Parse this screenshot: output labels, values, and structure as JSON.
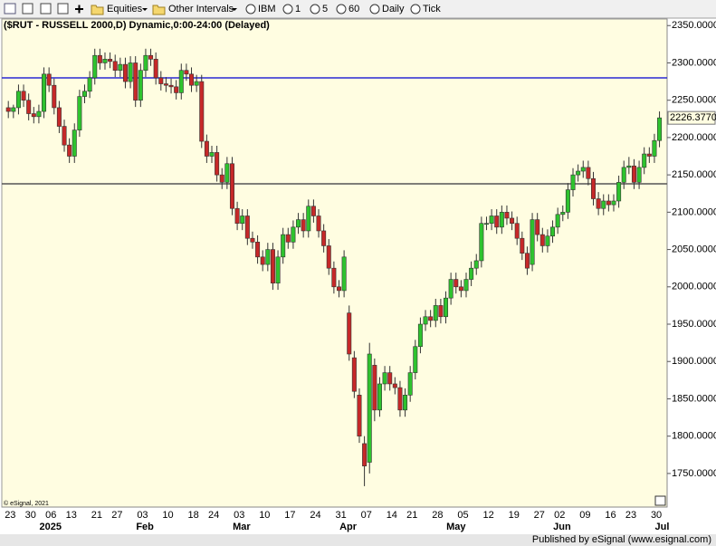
{
  "toolbar": {
    "items": [
      "Equities",
      "Other Intervals",
      "IBM",
      "1",
      "5",
      "60",
      "Daily",
      "Tick"
    ]
  },
  "footer": "Published by eSignal (www.esignal.com)",
  "chart_data": {
    "type": "candlestick",
    "title": "($RUT - RUSSELL 2000,D) Dynamic,0:00-24:00 (Delayed)",
    "copyright": "© eSignal, 2021",
    "background": "#fffde1",
    "up_color": "#2ec32e",
    "down_color": "#c62828",
    "ylim": [
      1705,
      2360
    ],
    "yticks": [
      {
        "value": 2350,
        "label": "2350.0000"
      },
      {
        "value": 2300,
        "label": "2300.0000"
      },
      {
        "value": 2250,
        "label": "2250.0000"
      },
      {
        "value": 2200,
        "label": "2200.0000"
      },
      {
        "value": 2150,
        "label": "2150.0000"
      },
      {
        "value": 2100,
        "label": "2100.0000"
      },
      {
        "value": 2050,
        "label": "2050.0000"
      },
      {
        "value": 2000,
        "label": "2000.0000"
      },
      {
        "value": 1950,
        "label": "1950.0000"
      },
      {
        "value": 1900,
        "label": "1900.0000"
      },
      {
        "value": 1850,
        "label": "1850.0000"
      },
      {
        "value": 1800,
        "label": "1800.0000"
      },
      {
        "value": 1750,
        "label": "1750.0000"
      }
    ],
    "last_price": {
      "value": 2226.377,
      "label": "2226.3770"
    },
    "hlines": [
      {
        "value": 2280,
        "color": "#2a2ad4"
      },
      {
        "value": 2138,
        "color": "#555555"
      }
    ],
    "categories": [
      "23",
      null,
      null,
      null,
      "30",
      null,
      null,
      null,
      "06",
      null,
      null,
      null,
      "13",
      null,
      null,
      null,
      null,
      "21",
      null,
      null,
      null,
      "27",
      null,
      null,
      null,
      null,
      "03",
      null,
      null,
      null,
      null,
      "10",
      null,
      null,
      null,
      null,
      "18",
      null,
      null,
      null,
      "24",
      null,
      null,
      null,
      null,
      "03",
      null,
      null,
      null,
      null,
      "10",
      null,
      null,
      null,
      null,
      "17",
      null,
      null,
      null,
      null,
      "24",
      null,
      null,
      null,
      null,
      "31",
      null,
      null,
      null,
      null,
      "07",
      null,
      null,
      null,
      null,
      "14",
      null,
      null,
      null,
      "21",
      null,
      null,
      null,
      null,
      "28",
      null,
      null,
      null,
      null,
      "05",
      null,
      null,
      null,
      null,
      "12",
      null,
      null,
      null,
      null,
      "19",
      null,
      null,
      null,
      null,
      "27",
      null,
      null,
      null,
      "02",
      null,
      null,
      null,
      null,
      "09",
      null,
      null,
      null,
      null,
      "16",
      null,
      null,
      null,
      "23",
      null,
      null,
      null,
      null,
      "30",
      null
    ],
    "month_labels": [
      null,
      null,
      null,
      null,
      null,
      null,
      null,
      "2025",
      null,
      null,
      null,
      null,
      null,
      null,
      null,
      null,
      null,
      null,
      null,
      null,
      null,
      null,
      null,
      null,
      null,
      null,
      "Feb",
      null,
      null,
      null,
      null,
      null,
      null,
      null,
      null,
      null,
      null,
      null,
      null,
      null,
      null,
      null,
      null,
      null,
      null,
      "Mar",
      null,
      null,
      null,
      null,
      null,
      null,
      null,
      null,
      null,
      null,
      null,
      null,
      null,
      null,
      null,
      null,
      null,
      null,
      null,
      null,
      "Apr",
      null,
      null,
      null,
      null,
      null,
      null,
      null,
      null,
      null,
      null,
      null,
      null,
      null,
      null,
      null,
      null,
      null,
      null,
      null,
      null,
      "May",
      null,
      null,
      null,
      null,
      null,
      null,
      null,
      null,
      null,
      null,
      null,
      null,
      null,
      null,
      null,
      null,
      null,
      null,
      null,
      null,
      "Jun",
      null,
      null,
      null,
      null,
      null,
      null,
      null,
      null,
      null,
      null,
      null,
      null,
      null,
      null,
      null,
      null,
      null,
      null,
      null,
      "Jul"
    ],
    "open": [
      2240,
      2235,
      2240,
      2262,
      2250,
      2232,
      2228,
      2235,
      2285,
      2270,
      2240,
      2215,
      2190,
      2175,
      2210,
      2255,
      2262,
      2280,
      2310,
      2300,
      2305,
      2302,
      2290,
      2298,
      2275,
      2300,
      2250,
      2290,
      2310,
      2305,
      2280,
      2272,
      2270,
      2268,
      2260,
      2290,
      2285,
      2270,
      2275,
      2195,
      2175,
      2180,
      2150,
      2140,
      2165,
      2105,
      2085,
      2095,
      2065,
      2060,
      2040,
      2030,
      2050,
      2005,
      2040,
      2070,
      2060,
      2080,
      2090,
      2075,
      2108,
      2095,
      2075,
      2055,
      2025,
      2000,
      1995,
      1965,
      1905,
      1855,
      1790,
      1765,
      1895,
      1835,
      1870,
      1885,
      1870,
      1865,
      1835,
      1855,
      1885,
      1920,
      1950,
      1960,
      1955,
      1975,
      1960,
      1985,
      2010,
      2000,
      1995,
      2010,
      2025,
      2035,
      2085,
      2085,
      2095,
      2080,
      2100,
      2092,
      2085,
      2065,
      2045,
      2030,
      2090,
      2070,
      2055,
      2068,
      2080,
      2097,
      2100,
      2130,
      2150,
      2155,
      2160,
      2145,
      2118,
      2105,
      2115,
      2110,
      2115,
      2140,
      2160,
      2162,
      2140,
      2160,
      2178,
      2175,
      2196
    ],
    "high": [
      2249,
      2244,
      2271,
      2271,
      2259,
      2241,
      2244,
      2294,
      2294,
      2279,
      2249,
      2224,
      2199,
      2219,
      2264,
      2271,
      2289,
      2319,
      2319,
      2314,
      2314,
      2311,
      2307,
      2307,
      2309,
      2309,
      2299,
      2319,
      2319,
      2314,
      2289,
      2281,
      2279,
      2277,
      2299,
      2299,
      2294,
      2284,
      2284,
      2204,
      2189,
      2189,
      2159,
      2174,
      2174,
      2114,
      2104,
      2104,
      2074,
      2069,
      2049,
      2059,
      2059,
      2049,
      2079,
      2079,
      2089,
      2099,
      2099,
      2117,
      2117,
      2104,
      2084,
      2064,
      2034,
      2009,
      2049,
      1975,
      1914,
      1864,
      1800,
      1925,
      1904,
      1879,
      1894,
      1894,
      1879,
      1874,
      1864,
      1894,
      1929,
      1959,
      1969,
      1969,
      1984,
      1984,
      1994,
      2019,
      2019,
      2009,
      2019,
      2034,
      2044,
      2094,
      2094,
      2104,
      2104,
      2109,
      2109,
      2101,
      2094,
      2074,
      2054,
      2099,
      2099,
      2079,
      2077,
      2089,
      2106,
      2109,
      2139,
      2159,
      2164,
      2169,
      2169,
      2154,
      2127,
      2124,
      2124,
      2124,
      2149,
      2169,
      2174,
      2171,
      2169,
      2187,
      2187,
      2205,
      2235
    ],
    "low": [
      2226,
      2226,
      2231,
      2241,
      2223,
      2219,
      2219,
      2226,
      2261,
      2231,
      2206,
      2181,
      2166,
      2166,
      2201,
      2246,
      2253,
      2271,
      2291,
      2291,
      2293,
      2281,
      2281,
      2266,
      2266,
      2241,
      2241,
      2281,
      2296,
      2271,
      2263,
      2261,
      2259,
      2251,
      2251,
      2276,
      2261,
      2261,
      2186,
      2166,
      2166,
      2141,
      2131,
      2131,
      2096,
      2076,
      2076,
      2056,
      2051,
      2031,
      2021,
      2021,
      1996,
      1996,
      2031,
      2051,
      2051,
      2071,
      2066,
      2066,
      2086,
      2066,
      2046,
      2016,
      1991,
      1986,
      1986,
      1901,
      1851,
      1791,
      1733,
      1750,
      1820,
      1826,
      1861,
      1861,
      1856,
      1826,
      1826,
      1846,
      1876,
      1911,
      1941,
      1946,
      1946,
      1951,
      1951,
      1976,
      1991,
      1986,
      1986,
      2001,
      2016,
      2026,
      2076,
      2076,
      2071,
      2071,
      2083,
      2076,
      2056,
      2036,
      2016,
      2021,
      2061,
      2046,
      2046,
      2059,
      2071,
      2088,
      2091,
      2121,
      2141,
      2146,
      2136,
      2109,
      2096,
      2096,
      2101,
      2101,
      2106,
      2131,
      2151,
      2131,
      2131,
      2151,
      2166,
      2166,
      2187
    ],
    "close": [
      2235,
      2240,
      2262,
      2250,
      2232,
      2228,
      2235,
      2285,
      2270,
      2240,
      2215,
      2190,
      2175,
      2210,
      2255,
      2262,
      2280,
      2310,
      2300,
      2305,
      2302,
      2290,
      2298,
      2275,
      2300,
      2250,
      2290,
      2310,
      2305,
      2280,
      2272,
      2270,
      2268,
      2260,
      2290,
      2285,
      2270,
      2275,
      2195,
      2175,
      2180,
      2150,
      2140,
      2165,
      2105,
      2085,
      2095,
      2065,
      2060,
      2040,
      2030,
      2050,
      2005,
      2040,
      2070,
      2060,
      2080,
      2090,
      2075,
      2108,
      2095,
      2075,
      2055,
      2025,
      2000,
      1995,
      2040,
      1910,
      1860,
      1800,
      1760,
      1910,
      1835,
      1870,
      1885,
      1870,
      1865,
      1835,
      1855,
      1885,
      1920,
      1950,
      1960,
      1955,
      1975,
      1960,
      1985,
      2010,
      2000,
      1995,
      2010,
      2025,
      2035,
      2085,
      2085,
      2095,
      2080,
      2100,
      2092,
      2085,
      2065,
      2045,
      2025,
      2090,
      2070,
      2055,
      2068,
      2080,
      2097,
      2100,
      2130,
      2150,
      2155,
      2160,
      2145,
      2118,
      2105,
      2115,
      2110,
      2115,
      2140,
      2160,
      2162,
      2140,
      2160,
      2178,
      2175,
      2196,
      2226.377
    ]
  }
}
